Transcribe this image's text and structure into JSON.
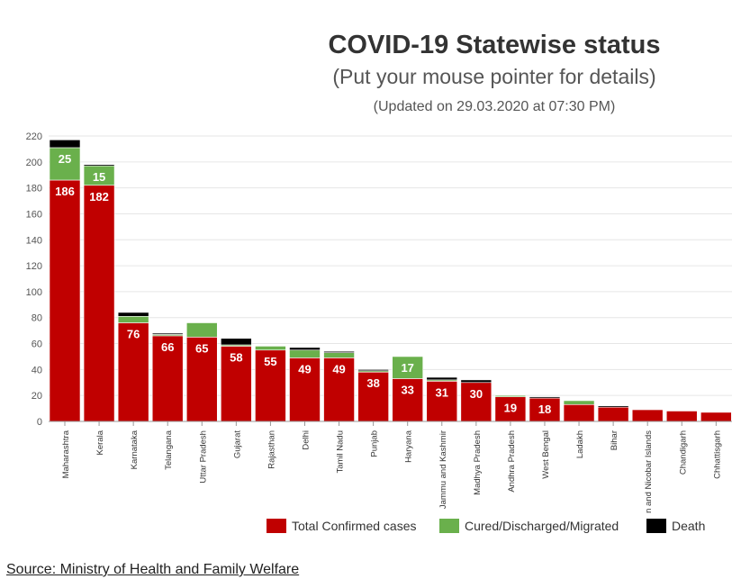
{
  "title": "COVID-19 Statewise status",
  "subtitle": "(Put your mouse pointer for details)",
  "updated": "(Updated on 29.03.2020 at 07:30 PM)",
  "source": "Source: Ministry of Health and Family Welfare",
  "colors": {
    "confirmed": "#c00000",
    "cured": "#6ab04c",
    "death": "#000000"
  },
  "chart_data": {
    "type": "bar",
    "stacked": true,
    "title": "COVID-19 Statewise status",
    "ylim": [
      0,
      220
    ],
    "yticks": [
      0,
      20,
      40,
      60,
      80,
      100,
      120,
      140,
      160,
      180,
      200,
      220
    ],
    "grid": true,
    "legend_position": "bottom",
    "categories": [
      "Maharashtra",
      "Kerala",
      "Karnataka",
      "Telangana",
      "Uttar Pradesh",
      "Gujarat",
      "Rajasthan",
      "Delhi",
      "Tamil Nadu",
      "Punjab",
      "Haryana",
      "Jammu and Kashmir",
      "Madhya Pradesh",
      "Andhra Pradesh",
      "West Bengal",
      "Ladakh",
      "Bihar",
      "Andaman and Nicobar Islands",
      "Chandigarh",
      "Chhattisgarh"
    ],
    "series": [
      {
        "name": "Total Confirmed cases",
        "key": "confirmed",
        "values": [
          186,
          182,
          76,
          66,
          65,
          58,
          55,
          49,
          49,
          38,
          33,
          31,
          30,
          19,
          18,
          13,
          11,
          9,
          8,
          7
        ]
      },
      {
        "name": "Cured/Discharged/Migrated",
        "key": "cured",
        "values": [
          25,
          15,
          5,
          1,
          11,
          1,
          3,
          6,
          4,
          1,
          17,
          1,
          0,
          1,
          0,
          3,
          0,
          0,
          0,
          0
        ]
      },
      {
        "name": "Death",
        "key": "death",
        "values": [
          6,
          1,
          3,
          1,
          0,
          5,
          0,
          2,
          1,
          1,
          0,
          2,
          2,
          0,
          1,
          0,
          1,
          0,
          0,
          0
        ]
      }
    ],
    "data_labels": {
      "confirmed": [
        186,
        182,
        76,
        66,
        65,
        58,
        55,
        49,
        49,
        38,
        33,
        31,
        30,
        19,
        18,
        null,
        null,
        null,
        null,
        null
      ],
      "cured": [
        25,
        15,
        null,
        null,
        null,
        null,
        null,
        null,
        null,
        null,
        17,
        null,
        null,
        null,
        null,
        null,
        null,
        null,
        null,
        null
      ]
    }
  }
}
